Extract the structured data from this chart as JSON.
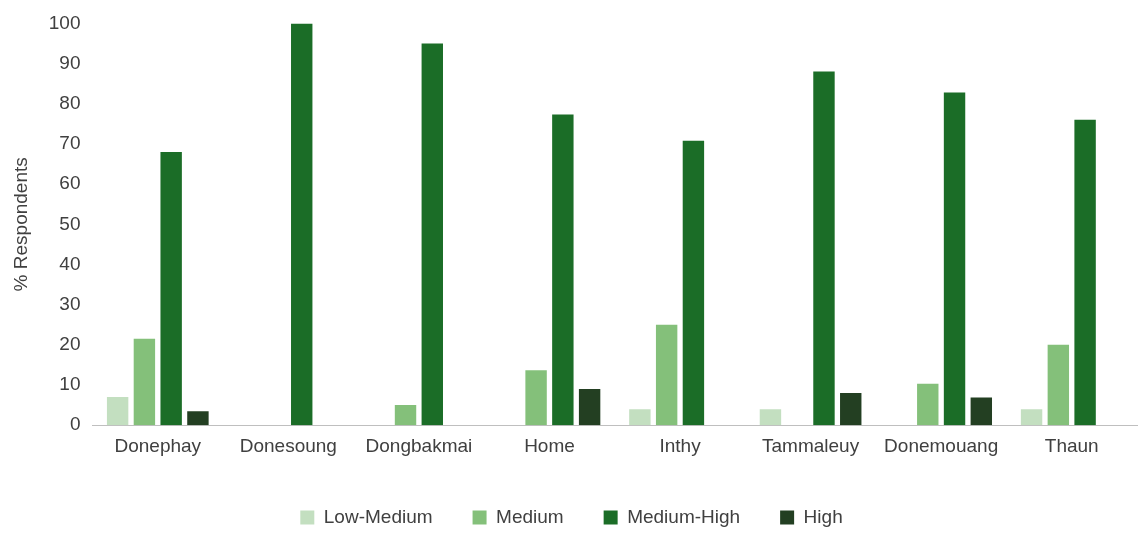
{
  "chart_data": {
    "type": "bar",
    "ylabel": "% Respondents",
    "categories": [
      "Donephay",
      "Donesoung",
      "Dongbakmai",
      "Home",
      "Inthy",
      "Tammaleuy",
      "Donemouang",
      "Thaun"
    ],
    "series": [
      {
        "name": "Low-Medium",
        "color": "#c3dfc0",
        "values": [
          7,
          0,
          0,
          0,
          4,
          4,
          0,
          4
        ]
      },
      {
        "name": "Medium",
        "color": "#84c07a",
        "values": [
          21.5,
          0,
          5,
          13.7,
          25,
          0,
          10.3,
          20
        ]
      },
      {
        "name": "Medium-High",
        "color": "#1b6d27",
        "values": [
          68,
          100,
          95,
          77.3,
          70.8,
          88,
          82.8,
          76
        ]
      },
      {
        "name": "High",
        "color": "#233f22",
        "values": [
          3.5,
          0,
          0,
          9,
          0,
          8,
          6.9,
          0
        ]
      }
    ],
    "ylim": [
      0,
      100
    ],
    "yticks": [
      0,
      10,
      20,
      30,
      40,
      50,
      60,
      70,
      80,
      90,
      100
    ],
    "grid": false,
    "legend": "bottom"
  }
}
